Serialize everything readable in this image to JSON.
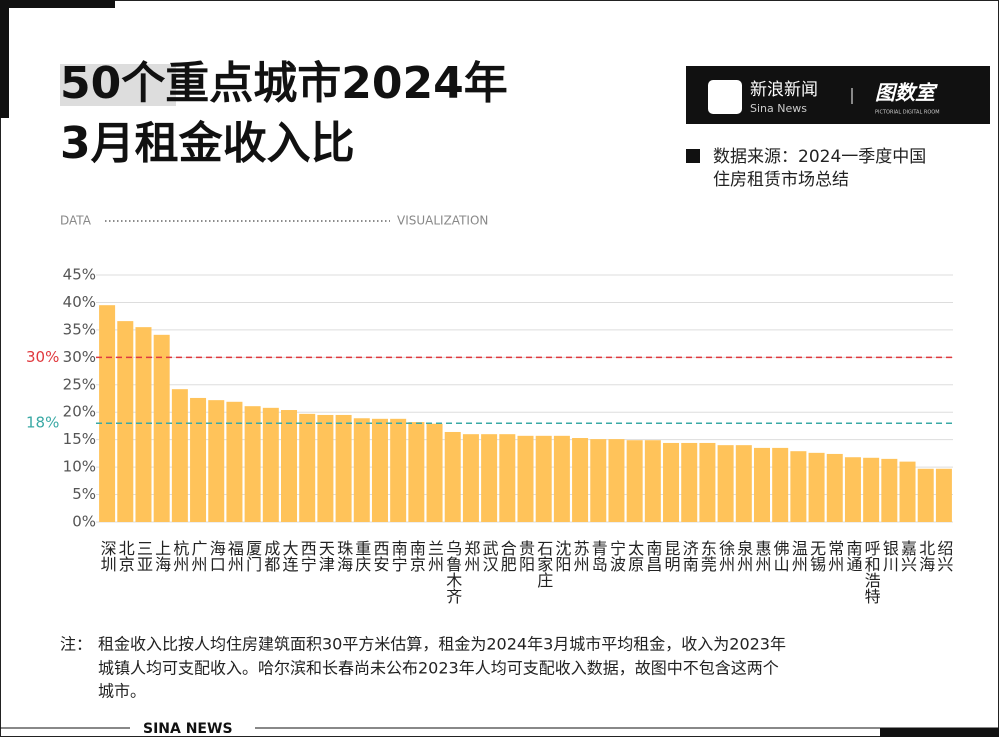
{
  "chart_data": {
    "type": "bar",
    "title_lines": [
      "50个重点城市2024年",
      "3月租金收入比"
    ],
    "brand": {
      "name": "新浪新闻",
      "sub": "Sina News",
      "partner": "图数室",
      "partner_sub": "PICTORIAL DIGITAL ROOM"
    },
    "source_lines": [
      "数据来源：2024一季度中国",
      "住房租赁市场总结"
    ],
    "header_left": "DATA",
    "header_right": "VISUALIZATION",
    "categories": [
      "深圳",
      "北京",
      "三亚",
      "上海",
      "杭州",
      "广州",
      "海口",
      "福州",
      "厦门",
      "成都",
      "大连",
      "西宁",
      "天津",
      "珠海",
      "重庆",
      "西安",
      "南宁",
      "南京",
      "兰州",
      "乌鲁木齐",
      "郑州",
      "武汉",
      "合肥",
      "贵阳",
      "石家庄",
      "沈阳",
      "苏州",
      "青岛",
      "宁波",
      "太原",
      "南昌",
      "昆明",
      "济南",
      "东莞",
      "徐州",
      "泉州",
      "惠州",
      "佛山",
      "温州",
      "无锡",
      "常州",
      "南通",
      "呼和浩特",
      "银川",
      "嘉兴",
      "北海",
      "绍兴"
    ],
    "values": [
      39.5,
      36.6,
      35.5,
      34.1,
      24.2,
      22.6,
      22.2,
      21.9,
      21.1,
      20.8,
      20.4,
      19.7,
      19.5,
      19.5,
      18.9,
      18.8,
      18.8,
      18.2,
      17.9,
      16.4,
      16.0,
      16.0,
      16.0,
      15.7,
      15.7,
      15.7,
      15.3,
      15.1,
      15.1,
      14.9,
      14.9,
      14.4,
      14.4,
      14.4,
      14.0,
      14.0,
      13.5,
      13.5,
      12.9,
      12.6,
      12.4,
      11.8,
      11.7,
      11.5,
      11.0,
      9.7,
      9.7
    ],
    "color": "#ffc35a",
    "ylim": [
      0,
      45
    ],
    "yticks": [
      {
        "value": 0,
        "label": "0%"
      },
      {
        "value": 5,
        "label": "5%"
      },
      {
        "value": 10,
        "label": "10%"
      },
      {
        "value": 15,
        "label": "15%"
      },
      {
        "value": 20,
        "label": "20%"
      },
      {
        "value": 25,
        "label": "25%"
      },
      {
        "value": 30,
        "label": "30%"
      },
      {
        "value": 35,
        "label": "35%"
      },
      {
        "value": 40,
        "label": "40%"
      },
      {
        "value": 45,
        "label": "45%"
      }
    ],
    "grid": true,
    "reference_lines": [
      {
        "value": 30,
        "label": "30%",
        "color": "#e0393e"
      },
      {
        "value": 18,
        "label": "18%",
        "color": "#3aa9a5"
      }
    ],
    "note_label": "注：",
    "note_lines": [
      "租金收入比按人均住房建筑面积30平方米估算，租金为2024年3月城市平均租金，收入为2023年",
      "城镇人均可支配收入。哈尔滨和长春尚未公布2023年人均可支配收入数据，故图中不包含这两个",
      "城市。"
    ],
    "footer": "SINA NEWS"
  }
}
